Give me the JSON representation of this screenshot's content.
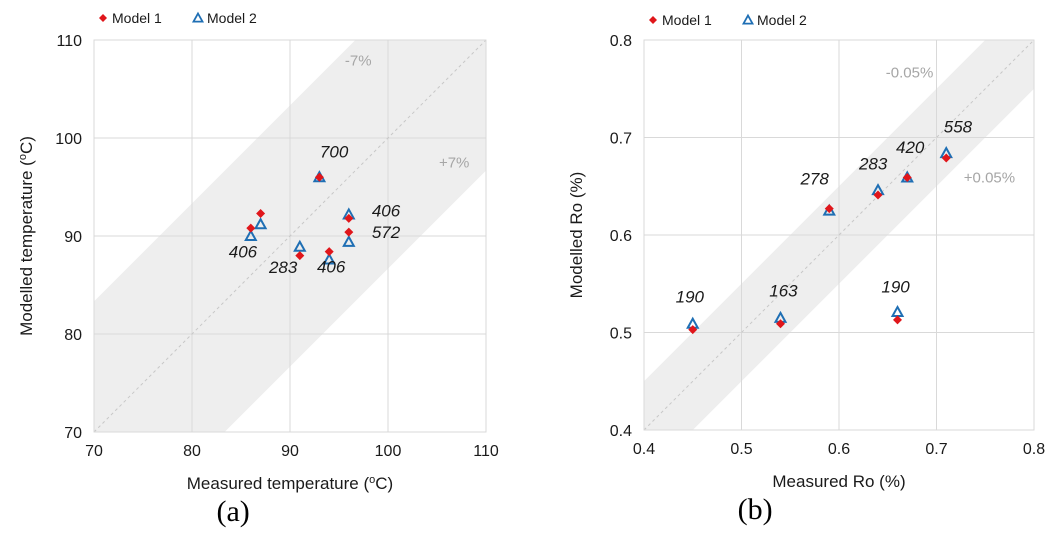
{
  "chart_data": [
    {
      "panel_label": "(a)",
      "type": "scatter",
      "xlabel": {
        "main": "Measured temperature (",
        "sup": "o",
        "tail": "C)"
      },
      "ylabel": {
        "main": "Modelled temperature (",
        "sup": "o",
        "tail": "C)"
      },
      "xlim": [
        70,
        110
      ],
      "ylim": [
        70,
        110
      ],
      "x_ticks": [
        "70",
        "80",
        "90",
        "100",
        "110"
      ],
      "y_ticks": [
        "70",
        "80",
        "90",
        "100",
        "110"
      ],
      "grid": true,
      "legend_position": "top-left",
      "band": {
        "lower_label": "-7%",
        "upper_label": "+7%"
      },
      "series": [
        {
          "name": "Model 1",
          "marker": "diamond",
          "color": "#e0161b",
          "points": [
            [
              86,
              90.8
            ],
            [
              87,
              92.3
            ],
            [
              91,
              88.0
            ],
            [
              93,
              96.0
            ],
            [
              94,
              88.4
            ],
            [
              96,
              90.4
            ],
            [
              96,
              91.8
            ]
          ]
        },
        {
          "name": "Model 2",
          "marker": "triangle-open",
          "color": "#1f6fb4",
          "points": [
            [
              86,
              90.0
            ],
            [
              87,
              91.2
            ],
            [
              91,
              88.9
            ],
            [
              93,
              96.0
            ],
            [
              94,
              87.6
            ],
            [
              96,
              89.4
            ],
            [
              96,
              92.2
            ]
          ]
        }
      ],
      "annotations": [
        {
          "text": "700",
          "x": 94.5,
          "y": 98.0
        },
        {
          "text": "406",
          "x": 99.8,
          "y": 92.0
        },
        {
          "text": "572",
          "x": 99.8,
          "y": 89.8
        },
        {
          "text": "406",
          "x": 85.2,
          "y": 87.8
        },
        {
          "text": "283",
          "x": 89.3,
          "y": 86.2
        },
        {
          "text": "406",
          "x": 94.2,
          "y": 86.3
        }
      ]
    },
    {
      "panel_label": "(b)",
      "type": "scatter",
      "xlabel": {
        "main": "Measured Ro (%)"
      },
      "ylabel": {
        "main": "Modelled Ro  (%)"
      },
      "xlim": [
        0.4,
        0.8
      ],
      "ylim": [
        0.4,
        0.8
      ],
      "x_ticks": [
        "0.4",
        "0.5",
        "0.6",
        "0.7",
        "0.8"
      ],
      "y_ticks": [
        "0.4",
        "0.5",
        "0.6",
        "0.7",
        "0.8"
      ],
      "grid": true,
      "legend_position": "top-left",
      "band": {
        "lower_label": "-0.05%",
        "upper_label": "+0.05%"
      },
      "series": [
        {
          "name": "Model 1",
          "marker": "diamond",
          "color": "#e0161b",
          "points": [
            [
              0.45,
              0.503
            ],
            [
              0.54,
              0.509
            ],
            [
              0.59,
              0.627
            ],
            [
              0.64,
              0.641
            ],
            [
              0.66,
              0.513
            ],
            [
              0.67,
              0.659
            ],
            [
              0.71,
              0.679
            ]
          ]
        },
        {
          "name": "Model 2",
          "marker": "triangle-open",
          "color": "#1f6fb4",
          "points": [
            [
              0.45,
              0.509
            ],
            [
              0.54,
              0.515
            ],
            [
              0.59,
              0.625
            ],
            [
              0.64,
              0.646
            ],
            [
              0.66,
              0.521
            ],
            [
              0.67,
              0.659
            ],
            [
              0.71,
              0.684
            ]
          ]
        }
      ],
      "annotations": [
        {
          "text": "190",
          "x": 0.447,
          "y": 0.531
        },
        {
          "text": "163",
          "x": 0.543,
          "y": 0.537
        },
        {
          "text": "278",
          "x": 0.575,
          "y": 0.652
        },
        {
          "text": "283",
          "x": 0.635,
          "y": 0.667
        },
        {
          "text": "420",
          "x": 0.673,
          "y": 0.684
        },
        {
          "text": "558",
          "x": 0.722,
          "y": 0.705
        },
        {
          "text": "190",
          "x": 0.658,
          "y": 0.541
        }
      ]
    }
  ]
}
